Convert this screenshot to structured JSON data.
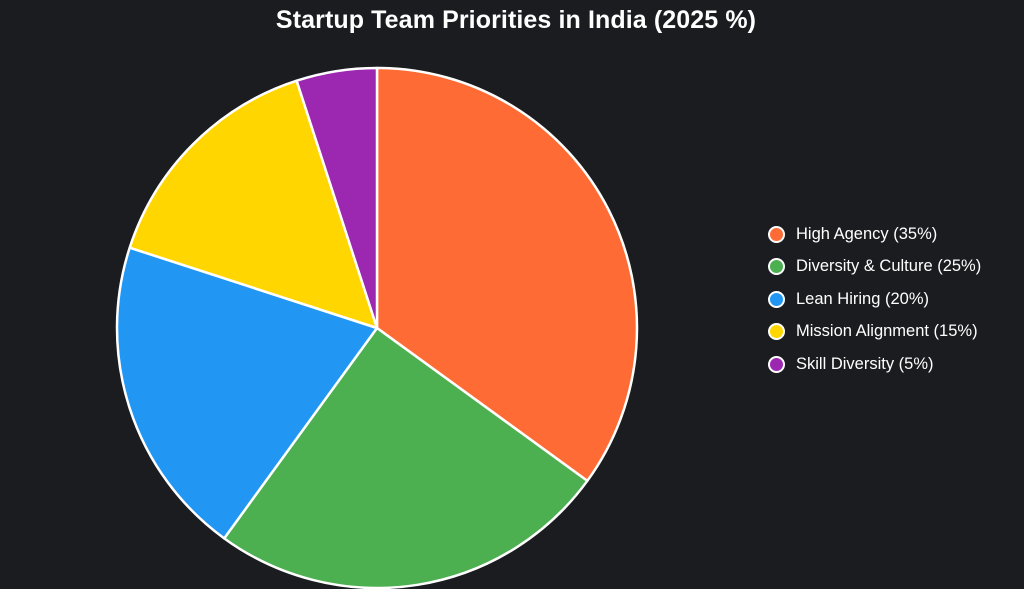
{
  "chart_data": {
    "type": "pie",
    "title": "Startup Team Priorities in India (2025 %)",
    "categories": [
      "High Agency",
      "Diversity & Culture",
      "Lean Hiring",
      "Mission Alignment",
      "Skill Diversity"
    ],
    "values": [
      35,
      25,
      20,
      15,
      5
    ],
    "colors": [
      "#ff6b35",
      "#4caf50",
      "#2196f3",
      "#ffd600",
      "#9c27b0"
    ],
    "legend_labels": [
      "High Agency (35%)",
      "Diversity & Culture (25%)",
      "Lean Hiring (20%)",
      "Mission Alignment (15%)",
      "Skill Diversity (5%)"
    ],
    "legend_position": "right",
    "start_angle": "12 o'clock",
    "direction": "clockwise",
    "slice_border_color": "#ffffff",
    "background_color": "#1b1c20"
  }
}
